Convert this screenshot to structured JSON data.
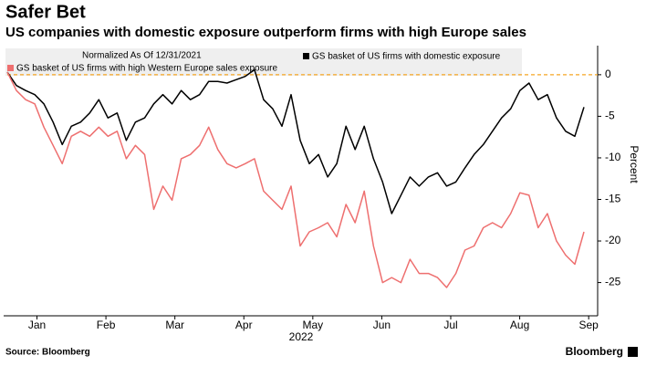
{
  "chart_data": {
    "type": "line",
    "title": "Safer Bet",
    "subtitle": "US companies with domestic exposure outperform firms with high Europe sales",
    "legend_title": "Normalized As Of 12/31/2021",
    "ylabel": "Percent",
    "xlabel": "2022",
    "source": "Source: Bloomberg",
    "brand": "Bloomberg",
    "xlim": [
      0.07,
      8.63
    ],
    "xticks": [
      {
        "value": 0.5,
        "label": "Jan"
      },
      {
        "value": 1.5,
        "label": "Feb"
      },
      {
        "value": 2.5,
        "label": "Mar"
      },
      {
        "value": 3.5,
        "label": "Apr"
      },
      {
        "value": 4.5,
        "label": "May"
      },
      {
        "value": 5.5,
        "label": "Jun"
      },
      {
        "value": 6.5,
        "label": "Jul"
      },
      {
        "value": 7.5,
        "label": "Aug"
      },
      {
        "value": 8.5,
        "label": "Sep"
      }
    ],
    "ylim": [
      -29,
      3.5
    ],
    "yticks": [
      0,
      -5,
      -10,
      -15,
      -20,
      -25
    ],
    "reference_line": {
      "value": 0,
      "color": "#f5a623"
    },
    "series": [
      {
        "name": "GS basket of US firms with domestic exposure",
        "color": "#000000",
        "values": [
          0.3,
          -1.3,
          -1.9,
          -2.4,
          -3.5,
          -5.7,
          -8.4,
          -6.2,
          -5.7,
          -4.6,
          -3.0,
          -5.2,
          -4.6,
          -7.9,
          -5.7,
          -5.2,
          -3.5,
          -2.4,
          -3.5,
          -1.9,
          -3.0,
          -2.4,
          -0.8,
          -0.8,
          -1.0,
          -0.6,
          -0.2,
          0.6,
          -3.0,
          -4.1,
          -6.2,
          -2.4,
          -7.9,
          -10.7,
          -9.6,
          -12.3,
          -10.7,
          -6.2,
          -9.0,
          -6.2,
          -10.1,
          -12.9,
          -16.7,
          -14.5,
          -12.3,
          -13.4,
          -12.3,
          -11.8,
          -13.4,
          -12.9,
          -11.2,
          -9.6,
          -8.4,
          -6.8,
          -5.2,
          -4.1,
          -1.9,
          -1.0,
          -3.0,
          -2.4,
          -5.2,
          -6.8,
          -7.4,
          -3.9
        ]
      },
      {
        "name": "GS basket of US firms with high Western Europe sales exposure",
        "color": "#ee6f6f",
        "values": [
          0.3,
          -1.9,
          -3.0,
          -3.5,
          -6.3,
          -8.5,
          -10.7,
          -7.4,
          -6.8,
          -7.4,
          -6.3,
          -7.4,
          -6.8,
          -10.1,
          -8.5,
          -9.6,
          -16.2,
          -13.4,
          -15.1,
          -10.1,
          -9.6,
          -8.5,
          -6.3,
          -9.0,
          -10.7,
          -11.2,
          -10.7,
          -10.1,
          -14.0,
          -15.1,
          -16.2,
          -13.4,
          -20.6,
          -18.9,
          -18.4,
          -17.8,
          -19.5,
          -15.6,
          -17.8,
          -14.0,
          -20.6,
          -25.0,
          -24.4,
          -25.0,
          -22.2,
          -23.9,
          -23.9,
          -24.4,
          -25.6,
          -23.9,
          -21.1,
          -20.6,
          -18.4,
          -17.8,
          -18.4,
          -16.7,
          -14.2,
          -14.5,
          -18.4,
          -16.7,
          -20.0,
          -21.7,
          -22.8,
          -18.9
        ]
      }
    ]
  }
}
